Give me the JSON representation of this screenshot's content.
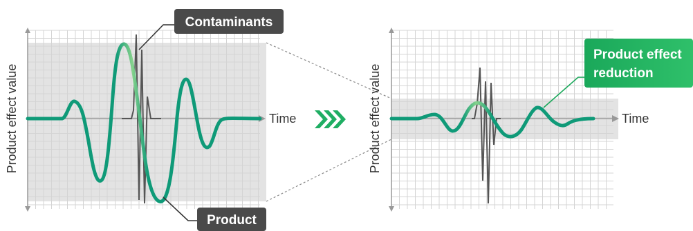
{
  "left_panel": {
    "y_axis_label": "Product effect value",
    "x_axis_label": "Time",
    "callout_contaminants": "Contaminants",
    "callout_product": "Product"
  },
  "right_panel": {
    "y_axis_label": "Product effect value",
    "x_axis_label": "Time",
    "callout_reduction_line1": "Product effect",
    "callout_reduction_line2": "reduction"
  },
  "arrow_glyph": "❯❯❯",
  "colors": {
    "grid": "#d4d4d4",
    "band": "#e3e3e3",
    "axis": "#999999",
    "product_wave": "#13a07a",
    "product_wave_light": "#7fcf8c",
    "contaminant_wave": "#555555",
    "dark_callout": "#4a4a4a",
    "green_callout": "#22b35e",
    "chevrons": "#1fae63"
  }
}
